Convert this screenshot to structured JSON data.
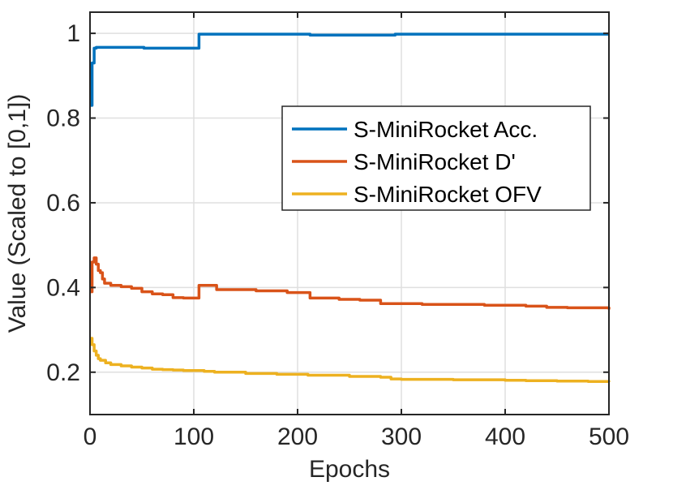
{
  "chart_data": {
    "type": "line",
    "title": "",
    "xlabel": "Epochs",
    "ylabel": "Value (Scaled to [0,1])",
    "xlim": [
      0,
      500
    ],
    "ylim": [
      0.1,
      1.05
    ],
    "xticks": [
      0,
      100,
      200,
      300,
      400,
      500
    ],
    "xtick_labels": [
      "0",
      "100",
      "200",
      "300",
      "400",
      "500"
    ],
    "yticks": [
      0.2,
      0.4,
      0.6,
      0.8,
      1.0
    ],
    "ytick_labels": [
      "0.2",
      "0.4",
      "0.6",
      "0.8",
      "1"
    ],
    "grid": true,
    "legend_position": "right",
    "series": [
      {
        "name": "S-MiniRocket Acc.",
        "color": "#0072BD",
        "x": [
          0,
          2,
          4,
          6,
          50,
          52,
          103,
          105,
          210,
          212,
          292,
          294,
          500
        ],
        "y": [
          0.83,
          0.93,
          0.965,
          0.967,
          0.967,
          0.965,
          0.965,
          0.998,
          0.998,
          0.996,
          0.996,
          0.998,
          0.998
        ]
      },
      {
        "name": "S-MiniRocket D'",
        "color": "#D95319",
        "x": [
          0,
          2,
          4,
          6,
          8,
          10,
          12,
          14,
          20,
          30,
          40,
          50,
          60,
          70,
          80,
          90,
          100,
          103,
          105,
          110,
          120,
          122,
          130,
          150,
          160,
          170,
          190,
          210,
          212,
          240,
          260,
          270,
          280,
          290,
          300,
          320,
          350,
          380,
          400,
          420,
          440,
          460,
          480,
          500
        ],
        "y": [
          0.39,
          0.46,
          0.47,
          0.455,
          0.44,
          0.435,
          0.42,
          0.41,
          0.405,
          0.402,
          0.398,
          0.39,
          0.385,
          0.383,
          0.376,
          0.375,
          0.375,
          0.375,
          0.405,
          0.405,
          0.405,
          0.395,
          0.395,
          0.395,
          0.392,
          0.392,
          0.388,
          0.388,
          0.375,
          0.372,
          0.37,
          0.37,
          0.362,
          0.362,
          0.362,
          0.36,
          0.36,
          0.358,
          0.358,
          0.356,
          0.353,
          0.352,
          0.352,
          0.348
        ]
      },
      {
        "name": "S-MiniRocket OFV",
        "color": "#EDB120",
        "x": [
          0,
          2,
          4,
          6,
          8,
          10,
          15,
          20,
          30,
          40,
          50,
          60,
          70,
          80,
          90,
          100,
          110,
          120,
          150,
          180,
          210,
          250,
          280,
          290,
          300,
          350,
          400,
          420,
          450,
          480,
          500
        ],
        "y": [
          0.28,
          0.265,
          0.25,
          0.24,
          0.232,
          0.228,
          0.222,
          0.218,
          0.215,
          0.212,
          0.21,
          0.207,
          0.206,
          0.205,
          0.204,
          0.204,
          0.202,
          0.2,
          0.197,
          0.195,
          0.193,
          0.19,
          0.188,
          0.184,
          0.183,
          0.182,
          0.181,
          0.18,
          0.179,
          0.178,
          0.177
        ]
      }
    ]
  }
}
